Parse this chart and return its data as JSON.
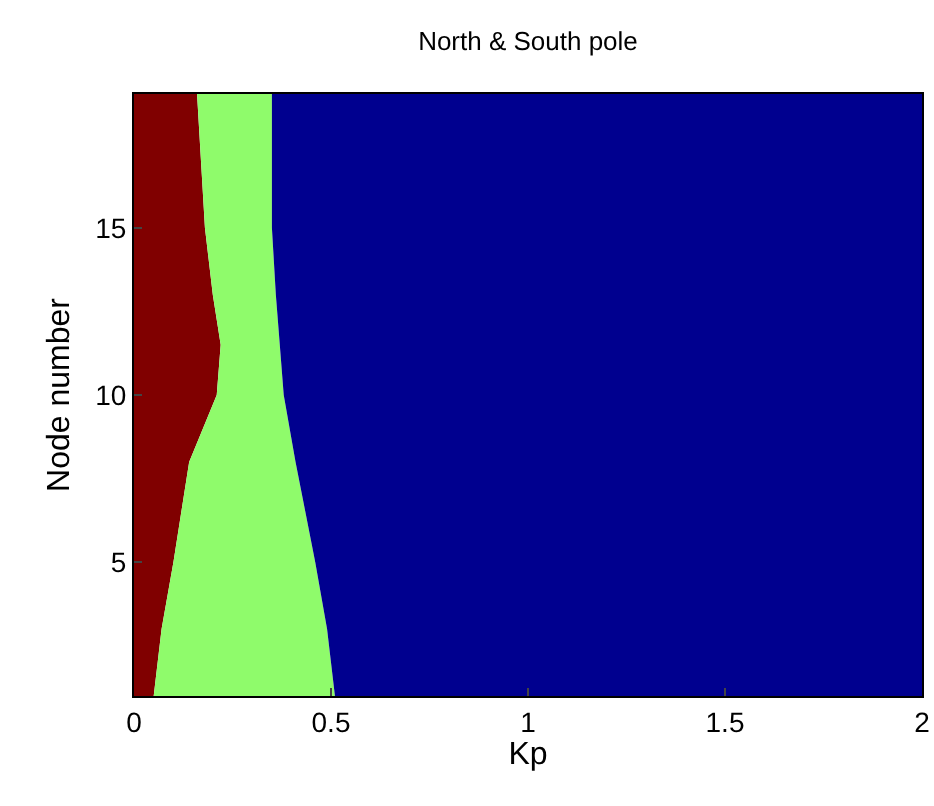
{
  "chart_data": {
    "type": "area",
    "title": "North & South pole",
    "xlabel": "Kp",
    "ylabel": "Node number",
    "stacked": true,
    "orientation": "horizontal",
    "x": [
      1,
      3,
      5,
      8,
      10,
      11.5,
      13,
      15,
      17,
      19
    ],
    "series": [
      {
        "color": "#800000",
        "values": [
          0.05,
          0.07,
          0.1,
          0.14,
          0.21,
          0.22,
          0.2,
          0.18,
          0.17,
          0.16
        ]
      },
      {
        "color": "#8ffb6b",
        "values": [
          0.46,
          0.42,
          0.36,
          0.27,
          0.17,
          0.15,
          0.16,
          0.17,
          0.18,
          0.19
        ]
      },
      {
        "color": "#00008f",
        "values": [
          1.49,
          1.51,
          1.54,
          1.59,
          1.62,
          1.63,
          1.64,
          1.65,
          1.65,
          1.65
        ]
      }
    ],
    "xlim": [
      0,
      2
    ],
    "xticks": [
      0,
      0.5,
      1,
      1.5,
      2
    ],
    "ylim": [
      1,
      19
    ],
    "yticks": [
      5,
      10,
      15
    ]
  }
}
